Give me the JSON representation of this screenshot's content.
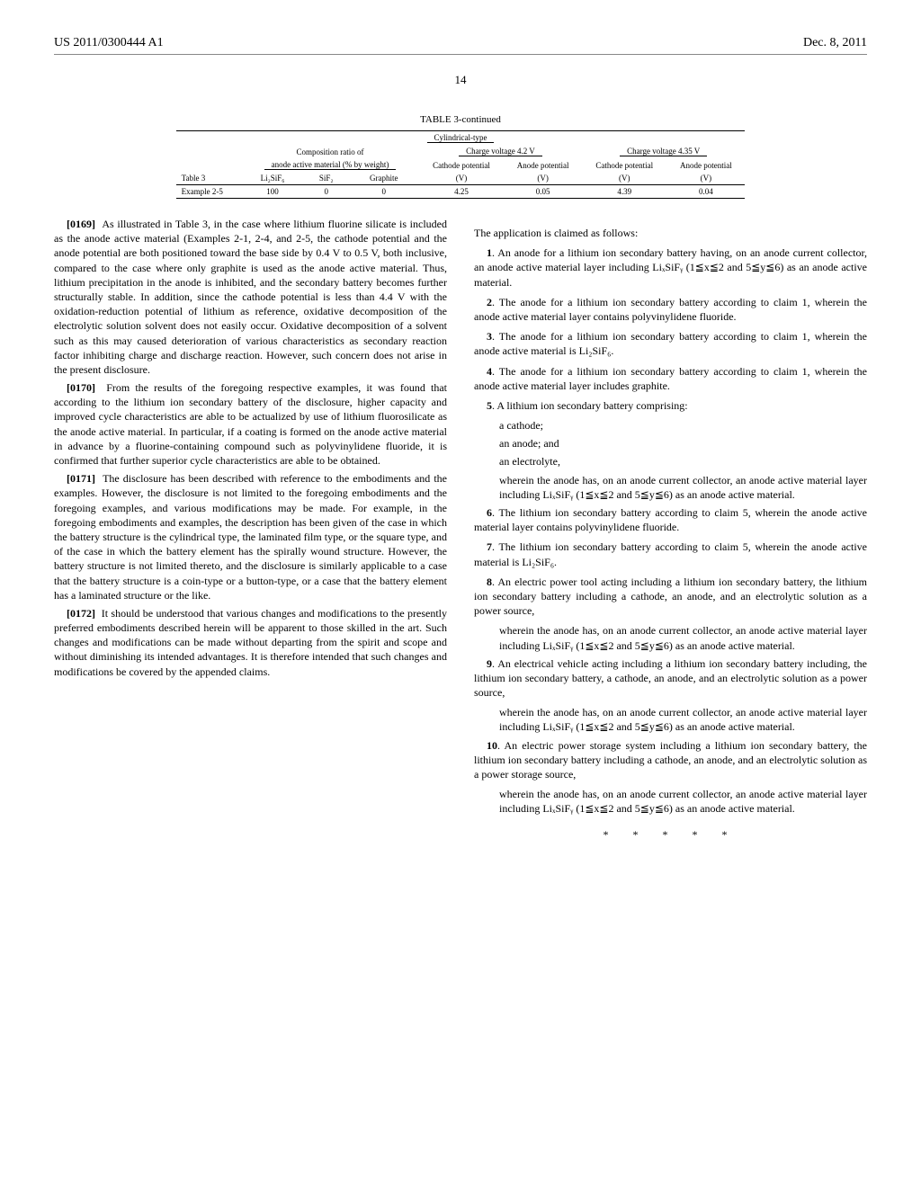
{
  "header": {
    "left": "US 2011/0300444 A1",
    "right": "Dec. 8, 2011"
  },
  "page_number": "14",
  "table": {
    "caption": "TABLE 3-continued",
    "subcaption": "Cylindrical-type",
    "group_headers": {
      "composition": "Composition ratio of",
      "composition_sub": "anode active material (% by weight)",
      "charge1": "Charge voltage 4.2 V",
      "charge2": "Charge voltage 4.35 V"
    },
    "columns": [
      "Table 3",
      "Li₂SiF₆",
      "SiF₂",
      "Graphite",
      "Cathode potential",
      "Anode potential",
      "Cathode potential",
      "Anode potential"
    ],
    "units": [
      "",
      "",
      "",
      "",
      "(V)",
      "(V)",
      "(V)",
      "(V)"
    ],
    "rows": [
      [
        "Example 2-5",
        "100",
        "0",
        "0",
        "4.25",
        "0.05",
        "4.39",
        "0.04"
      ]
    ]
  },
  "paragraphs": {
    "p0169_num": "[0169]",
    "p0169": "As illustrated in Table 3, in the case where lithium fluorine silicate is included as the anode active material (Examples 2-1, 2-4, and 2-5, the cathode potential and the anode potential are both positioned toward the base side by 0.4 V to 0.5 V, both inclusive, compared to the case where only graphite is used as the anode active material. Thus, lithium precipitation in the anode is inhibited, and the secondary battery becomes further structurally stable. In addition, since the cathode potential is less than 4.4 V with the oxidation-reduction potential of lithium as reference, oxidative decomposition of the electrolytic solution solvent does not easily occur. Oxidative decomposition of a solvent such as this may caused deterioration of various characteristics as secondary reaction factor inhibiting charge and discharge reaction. However, such concern does not arise in the present disclosure.",
    "p0170_num": "[0170]",
    "p0170": "From the results of the foregoing respective examples, it was found that according to the lithium ion secondary battery of the disclosure, higher capacity and improved cycle characteristics are able to be actualized by use of lithium fluorosilicate as the anode active material. In particular, if a coating is formed on the anode active material in advance by a fluorine-containing compound such as polyvinylidene fluoride, it is confirmed that further superior cycle characteristics are able to be obtained.",
    "p0171_num": "[0171]",
    "p0171": "The disclosure has been described with reference to the embodiments and the examples. However, the disclosure is not limited to the foregoing embodiments and the foregoing examples, and various modifications may be made. For example, in the foregoing embodiments and examples, the description has been given of the case in which the battery structure is the cylindrical type, the laminated film type, or the square type, and of the case in which the battery element has the spirally wound structure. However, the battery structure is not limited thereto, and the disclosure is similarly applicable to a case that the battery structure is a coin-type or a button-type, or a case that the battery element has a laminated structure or the like.",
    "p0172_num": "[0172]",
    "p0172": "It should be understood that various changes and modifications to the presently preferred embodiments described herein will be apparent to those skilled in the art. Such changes and modifications can be made without departing from the spirit and scope and without diminishing its intended advantages. It is therefore intended that such changes and modifications be covered by the appended claims."
  },
  "claims": {
    "intro": "The application is claimed as follows:",
    "c1_num": "1",
    "c1": ". An anode for a lithium ion secondary battery having, on an anode current collector, an anode active material layer including LiₓSiFᵧ (1≦x≦2 and 5≦y≦6) as an anode active material.",
    "c2_num": "2",
    "c2": ". The anode for a lithium ion secondary battery according to claim 1, wherein the anode active material layer contains polyvinylidene fluoride.",
    "c3_num": "3",
    "c3": ". The anode for a lithium ion secondary battery according to claim 1, wherein the anode active material is Li₂SiF₆.",
    "c4_num": "4",
    "c4": ". The anode for a lithium ion secondary battery according to claim 1, wherein the anode active material layer includes graphite.",
    "c5_num": "5",
    "c5": ". A lithium ion secondary battery comprising:",
    "c5_a": "a cathode;",
    "c5_b": "an anode; and",
    "c5_c": "an electrolyte,",
    "c5_d": "wherein the anode has, on an anode current collector, an anode active material layer including LiₓSiFᵧ (1≦x≦2 and 5≦y≦6) as an anode active material.",
    "c6_num": "6",
    "c6": ". The lithium ion secondary battery according to claim 5, wherein the anode active material layer contains polyvinylidene fluoride.",
    "c7_num": "7",
    "c7": ". The lithium ion secondary battery according to claim 5, wherein the anode active material is Li₂SiF₆.",
    "c8_num": "8",
    "c8": ". An electric power tool acting including a lithium ion secondary battery, the lithium ion secondary battery including a cathode, an anode, and an electrolytic solution as a power source,",
    "c8_a": "wherein the anode has, on an anode current collector, an anode active material layer including LiₓSiFᵧ (1≦x≦2 and 5≦y≦6) as an anode active material.",
    "c9_num": "9",
    "c9": ". An electrical vehicle acting including a lithium ion secondary battery including, the lithium ion secondary battery, a cathode, an anode, and an electrolytic solution as a power source,",
    "c9_a": "wherein the anode has, on an anode current collector, an anode active material layer including LiₓSiFᵧ (1≦x≦2 and 5≦y≦6) as an anode active material.",
    "c10_num": "10",
    "c10": ". An electric power storage system including a lithium ion secondary battery, the lithium ion secondary battery including a cathode, an anode, and an electrolytic solution as a power storage source,",
    "c10_a": "wherein the anode has, on an anode current collector, an anode active material layer including LiₓSiFᵧ (1≦x≦2 and 5≦y≦6) as an anode active material.",
    "endmark": "* * * * *"
  }
}
